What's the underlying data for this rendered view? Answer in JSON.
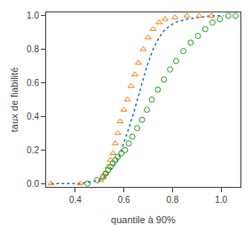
{
  "chart_data": {
    "type": "scatter",
    "title": "",
    "xlabel": "quantile à 90%",
    "ylabel": "taux de fiabilité",
    "xlim": [
      0.28,
      1.08
    ],
    "ylim": [
      -0.02,
      1.02
    ],
    "xticks": [
      0.4,
      0.6,
      0.8,
      {
        "value": 1.0,
        "label": "1.0"
      }
    ],
    "yticks": [
      {
        "value": 0.0,
        "label": "0.0"
      },
      0.2,
      0.4,
      0.6,
      0.8,
      {
        "value": 1.0,
        "label": "1.0"
      }
    ],
    "grid": false,
    "series": [
      {
        "type": "line",
        "line_style": "dotted",
        "x": [
          0.3,
          0.42,
          0.5,
          0.52,
          0.535,
          0.545,
          0.555,
          0.565,
          0.575,
          0.59,
          0.61,
          0.625,
          0.64,
          0.655,
          0.67,
          0.685,
          0.7,
          0.72,
          0.745,
          0.77,
          0.81,
          0.86,
          0.91,
          0.96,
          1.01
        ],
        "values": [
          0.0,
          0.0,
          0.02,
          0.04,
          0.06,
          0.08,
          0.1,
          0.12,
          0.14,
          0.2,
          0.28,
          0.35,
          0.42,
          0.5,
          0.58,
          0.65,
          0.72,
          0.8,
          0.87,
          0.92,
          0.96,
          0.98,
          0.99,
          1.0,
          1.0
        ]
      },
      {
        "type": "scatter",
        "marker": "triangle-up-open",
        "x": [
          0.3,
          0.42,
          0.505,
          0.515,
          0.525,
          0.535,
          0.545,
          0.555,
          0.565,
          0.575,
          0.585,
          0.6,
          0.615,
          0.63,
          0.645,
          0.66,
          0.68,
          0.7,
          0.72,
          0.745,
          0.77,
          0.81,
          0.86,
          0.91,
          0.96
        ],
        "values": [
          0.0,
          0.0,
          0.02,
          0.04,
          0.06,
          0.1,
          0.14,
          0.18,
          0.24,
          0.3,
          0.37,
          0.44,
          0.5,
          0.58,
          0.65,
          0.72,
          0.8,
          0.87,
          0.92,
          0.96,
          0.98,
          0.99,
          1.0,
          1.0,
          1.0
        ]
      },
      {
        "type": "scatter",
        "marker": "circle-open",
        "x": [
          0.45,
          0.49,
          0.515,
          0.525,
          0.535,
          0.545,
          0.555,
          0.565,
          0.575,
          0.59,
          0.605,
          0.62,
          0.635,
          0.655,
          0.675,
          0.695,
          0.715,
          0.74,
          0.765,
          0.79,
          0.815,
          0.845,
          0.875,
          0.905,
          0.935,
          0.965,
          0.995,
          1.03,
          1.06
        ],
        "values": [
          0.0,
          0.02,
          0.04,
          0.06,
          0.08,
          0.1,
          0.12,
          0.14,
          0.16,
          0.18,
          0.2,
          0.24,
          0.28,
          0.33,
          0.38,
          0.44,
          0.5,
          0.56,
          0.62,
          0.68,
          0.73,
          0.79,
          0.84,
          0.88,
          0.92,
          0.96,
          0.98,
          1.0,
          1.0
        ]
      }
    ]
  }
}
